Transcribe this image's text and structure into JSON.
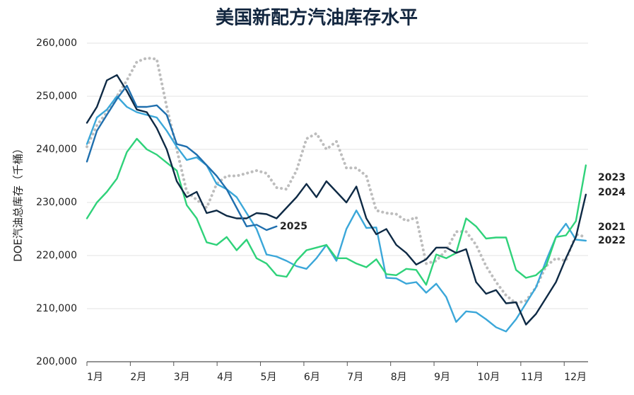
{
  "chart_data": {
    "type": "line",
    "title": "美国新配方汽油库存水平",
    "ylabel": "DOE汽油总库存（千桶）",
    "x": [
      1,
      1.23,
      1.46,
      1.69,
      1.92,
      2.15,
      2.38,
      2.61,
      2.84,
      3.07,
      3.3,
      3.53,
      3.76,
      3.99,
      4.22,
      4.45,
      4.68,
      4.91,
      5.14,
      5.37,
      5.6,
      5.83,
      6.06,
      6.29,
      6.52,
      6.75,
      6.98,
      7.21,
      7.44,
      7.67,
      7.9,
      8.13,
      8.36,
      8.59,
      8.82,
      9.05,
      9.28,
      9.51,
      9.74,
      9.97,
      10.2,
      10.43,
      10.66,
      10.89,
      11.12,
      11.35,
      11.58,
      11.81,
      12.04,
      12.27,
      12.5
    ],
    "xlim": [
      1,
      12.55
    ],
    "xticks": [
      {
        "value": 1,
        "label": "1月"
      },
      {
        "value": 2,
        "label": "2月"
      },
      {
        "value": 3,
        "label": "3月"
      },
      {
        "value": 4,
        "label": "4月"
      },
      {
        "value": 5,
        "label": "5月"
      },
      {
        "value": 6,
        "label": "6月"
      },
      {
        "value": 7,
        "label": "7月"
      },
      {
        "value": 8,
        "label": "8月"
      },
      {
        "value": 9,
        "label": "9月"
      },
      {
        "value": 10,
        "label": "10月"
      },
      {
        "value": 11,
        "label": "11月"
      },
      {
        "value": 12,
        "label": "12月"
      }
    ],
    "ylim": [
      200000,
      260000
    ],
    "yticks": [
      {
        "value": 200000,
        "label": "200,000"
      },
      {
        "value": 210000,
        "label": "210,000"
      },
      {
        "value": 220000,
        "label": "220,000"
      },
      {
        "value": 230000,
        "label": "230,000"
      },
      {
        "value": 240000,
        "label": "240,000"
      },
      {
        "value": 250000,
        "label": "250,000"
      },
      {
        "value": 260000,
        "label": "260,000"
      }
    ],
    "grid": true,
    "series": [
      {
        "name": "2021",
        "color": "#bdbdbd",
        "dotted": true,
        "values": [
          240500,
          244500,
          247000,
          250000,
          253000,
          256500,
          257200,
          257000,
          248000,
          240000,
          232000,
          230500,
          229000,
          233500,
          235000,
          235000,
          235500,
          236000,
          235500,
          232800,
          232500,
          236000,
          242000,
          243000,
          240000,
          241500,
          236500,
          236500,
          235000,
          228500,
          228000,
          227800,
          226500,
          227200,
          218500,
          219000,
          221000,
          224500,
          224500,
          222000,
          218000,
          215000,
          212500,
          211000,
          211500,
          214000,
          218000,
          219500,
          219000,
          224000,
          223500
        ]
      },
      {
        "name": "2022",
        "color": "#3ba7d9",
        "values": [
          241000,
          246000,
          247500,
          250000,
          248000,
          247000,
          246500,
          246000,
          243500,
          240500,
          238000,
          238500,
          237000,
          233500,
          232500,
          231000,
          228000,
          225000,
          220200,
          219800,
          219000,
          218000,
          217500,
          219500,
          222000,
          219000,
          225000,
          228500,
          225200,
          225300,
          215800,
          215700,
          214700,
          215000,
          213000,
          214700,
          212200,
          207500,
          209500,
          209300,
          208000,
          206500,
          205700,
          208000,
          211000,
          214000,
          219000,
          223500,
          226000,
          223000,
          222800
        ]
      },
      {
        "name": "2023",
        "color": "#2fd27a",
        "values": [
          227000,
          230000,
          232000,
          234500,
          239500,
          242000,
          240000,
          239000,
          237500,
          236000,
          229500,
          227000,
          222500,
          222000,
          223500,
          221000,
          223000,
          219500,
          218500,
          216300,
          216000,
          219000,
          221000,
          221500,
          222000,
          219500,
          219500,
          218500,
          217800,
          219300,
          216500,
          216300,
          217500,
          217300,
          214500,
          220200,
          219500,
          220500,
          227000,
          225500,
          223200,
          223400,
          223400,
          217300,
          215800,
          216300,
          218000,
          223500,
          223800,
          226500,
          237000
        ]
      },
      {
        "name": "2024",
        "color": "#0e2a45",
        "values": [
          245000,
          248000,
          253000,
          254000,
          251000,
          247500,
          247000,
          244000,
          240000,
          234000,
          231000,
          232000,
          228000,
          228500,
          227500,
          227000,
          227000,
          228000,
          227800,
          227000,
          229000,
          231000,
          233500,
          231000,
          234000,
          232000,
          230000,
          233000,
          227000,
          224000,
          225000,
          222000,
          220500,
          218300,
          219300,
          221500,
          221500,
          220500,
          221200,
          215000,
          212800,
          213500,
          211000,
          211200,
          207000,
          209000,
          212000,
          215000,
          219500,
          223500,
          231500
        ]
      },
      {
        "name": "2025",
        "color": "#1f6fae",
        "values": [
          237700,
          243500,
          246500,
          249500,
          252000,
          248000,
          248000,
          248300,
          246500,
          241000,
          240500,
          239000,
          237000,
          235000,
          232500,
          229000,
          225500,
          225800,
          224800,
          225500,
          null,
          null,
          null,
          null,
          null,
          null,
          null,
          null,
          null,
          null,
          null,
          null,
          null,
          null,
          null,
          null,
          null,
          null,
          null,
          null,
          null,
          null,
          null,
          null,
          null,
          null,
          null,
          null,
          null,
          null,
          null
        ]
      }
    ]
  }
}
